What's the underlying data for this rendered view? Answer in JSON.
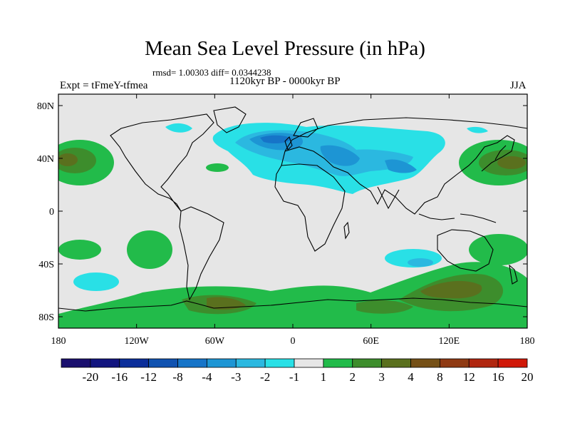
{
  "title": "Mean Sea Level Pressure (in hPa)",
  "stats": "rmsd= 1.00303 diff= 0.0344238",
  "period": "1120kyr BP - 0000kyr BP",
  "experiment": "Expt = tFmeY-tfmea",
  "season": "JJA",
  "axes": {
    "x_ticks": [
      "180",
      "120W",
      "60W",
      "0",
      "60E",
      "120E",
      "180"
    ],
    "y_ticks": [
      "80N",
      "40N",
      "0",
      "40S",
      "80S"
    ]
  },
  "colorbar": {
    "labels": [
      "-20",
      "-16",
      "-12",
      "-8",
      "-4",
      "-3",
      "-2",
      "-1",
      "1",
      "2",
      "3",
      "4",
      "8",
      "12",
      "16",
      "20"
    ],
    "colors": [
      "#1a0f6e",
      "#12157f",
      "#0b2e9a",
      "#1052b0",
      "#1674c8",
      "#1d95d4",
      "#2bb8e0",
      "#29e0e6",
      "#e6e6e6",
      "#22bb4a",
      "#3d8d2c",
      "#5a701e",
      "#755017",
      "#8f3a13",
      "#b0260f",
      "#d01808"
    ]
  }
}
